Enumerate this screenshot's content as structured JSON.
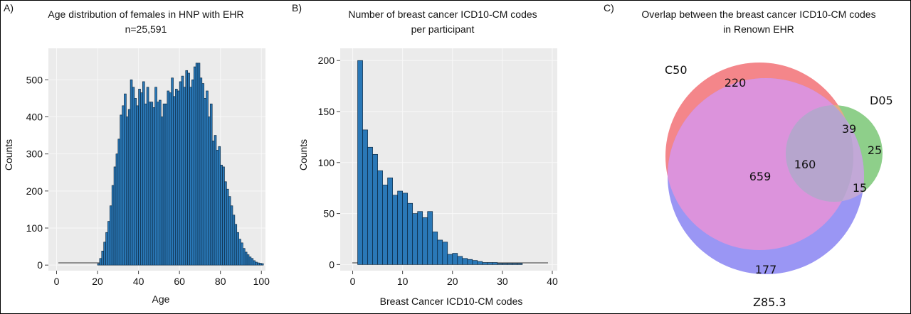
{
  "colors": {
    "plot_bg": "#ebebeb",
    "bar_fill": "#2a78b7",
    "bar_edge": "#0d2b45",
    "grid": "#f8f8f8",
    "venn_c50": "#f4868a",
    "venn_d05": "#8ecf8a",
    "venn_z853": "#9a96f4",
    "venn_c50_d05": "#e1ae82",
    "venn_c50_z853": "#dc93dc",
    "venn_d05_z853": "#c2a8d7",
    "venn_all": "#b6a5cd"
  },
  "chart_data": [
    {
      "panel_label": "A)",
      "type": "bar",
      "title": "Age distribution of females in HNP with EHR",
      "subtitle": "n=25,591",
      "xlabel": "Age",
      "ylabel": "Counts",
      "xlim": [
        -4,
        102
      ],
      "ylim": [
        -15,
        585
      ],
      "xticks": [
        0,
        20,
        40,
        60,
        80,
        100
      ],
      "yticks": [
        0,
        100,
        200,
        300,
        400,
        500
      ],
      "grid": true,
      "bin_start": 0,
      "bin_width": 1,
      "values": [
        0,
        0,
        0,
        0,
        0,
        0,
        0,
        0,
        0,
        0,
        0,
        0,
        0,
        0,
        0,
        0,
        0,
        0,
        0,
        0,
        4,
        18,
        38,
        62,
        88,
        118,
        160,
        215,
        265,
        300,
        340,
        405,
        430,
        462,
        400,
        420,
        500,
        480,
        450,
        430,
        475,
        465,
        495,
        435,
        480,
        440,
        440,
        425,
        480,
        440,
        445,
        400,
        435,
        435,
        470,
        465,
        505,
        455,
        475,
        470,
        495,
        510,
        480,
        525,
        518,
        480,
        500,
        535,
        545,
        545,
        505,
        490,
        450,
        470,
        400,
        435,
        335,
        350,
        310,
        320,
        270,
        265,
        225,
        205,
        185,
        160,
        135,
        110,
        88,
        70,
        60,
        45,
        35,
        28,
        22,
        18,
        12,
        8,
        6,
        5,
        4
      ]
    },
    {
      "panel_label": "B)",
      "type": "bar",
      "title": "Number of breast cancer ICD10-CM codes",
      "subtitle": "per participant",
      "xlabel": "Breast Cancer ICD10-CM codes",
      "ylabel": "Counts",
      "xlim": [
        -2.5,
        41
      ],
      "ylim": [
        -6,
        212
      ],
      "xticks": [
        0,
        10,
        20,
        30,
        40
      ],
      "yticks": [
        0,
        50,
        100,
        150,
        200
      ],
      "grid": true,
      "bin_start": 1,
      "bin_width": 1,
      "values": [
        200,
        132,
        115,
        108,
        92,
        78,
        85,
        68,
        72,
        70,
        60,
        50,
        52,
        46,
        52,
        32,
        24,
        22,
        10,
        11,
        8,
        6,
        5,
        4,
        3,
        2,
        2,
        2,
        1,
        1,
        1,
        1,
        1
      ]
    },
    {
      "panel_label": "C)",
      "type": "venn",
      "title": "Overlap between the breast cancer ICD10-CM codes",
      "subtitle": "in Renown EHR",
      "sets": [
        "C50",
        "D05",
        "Z85.3"
      ],
      "regions": {
        "C50_only": 220,
        "D05_only": 25,
        "Z85.3_only": 177,
        "C50_D05": 39,
        "C50_Z85.3": 659,
        "D05_Z85.3": 15,
        "C50_D05_Z85.3": 160
      }
    }
  ]
}
